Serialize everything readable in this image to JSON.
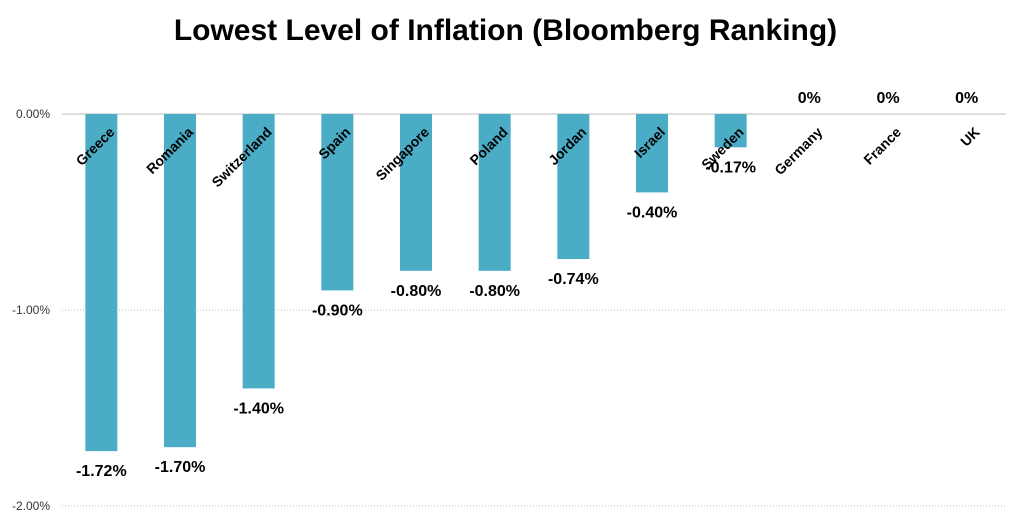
{
  "chart_data": {
    "type": "bar",
    "title": "Lowest Level of Inflation (Bloomberg Ranking)",
    "categories": [
      "Greece",
      "Romania",
      "Switzerland",
      "Spain",
      "Singapore",
      "Poland",
      "Jordan",
      "Israel",
      "Sweden",
      "Germany",
      "France",
      "UK"
    ],
    "values": [
      -1.72,
      -1.7,
      -1.4,
      -0.9,
      -0.8,
      -0.8,
      -0.74,
      -0.4,
      -0.17,
      0,
      0,
      0
    ],
    "data_labels": [
      "-1.72%",
      "-1.70%",
      "-1.40%",
      "-0.90%",
      "-0.80%",
      "-0.80%",
      "-0.74%",
      "-0.40%",
      "-0.17%",
      "0%",
      "0%",
      "0%"
    ],
    "yticks": [
      0,
      -1,
      -2
    ],
    "ytick_labels": [
      "0.00%",
      "-1.00%",
      "-2.00%"
    ],
    "ylim": [
      -2,
      0
    ],
    "bar_color": "#4bacc6",
    "gridline_color": "#9dc3cf",
    "grid": true,
    "legend": "none"
  }
}
